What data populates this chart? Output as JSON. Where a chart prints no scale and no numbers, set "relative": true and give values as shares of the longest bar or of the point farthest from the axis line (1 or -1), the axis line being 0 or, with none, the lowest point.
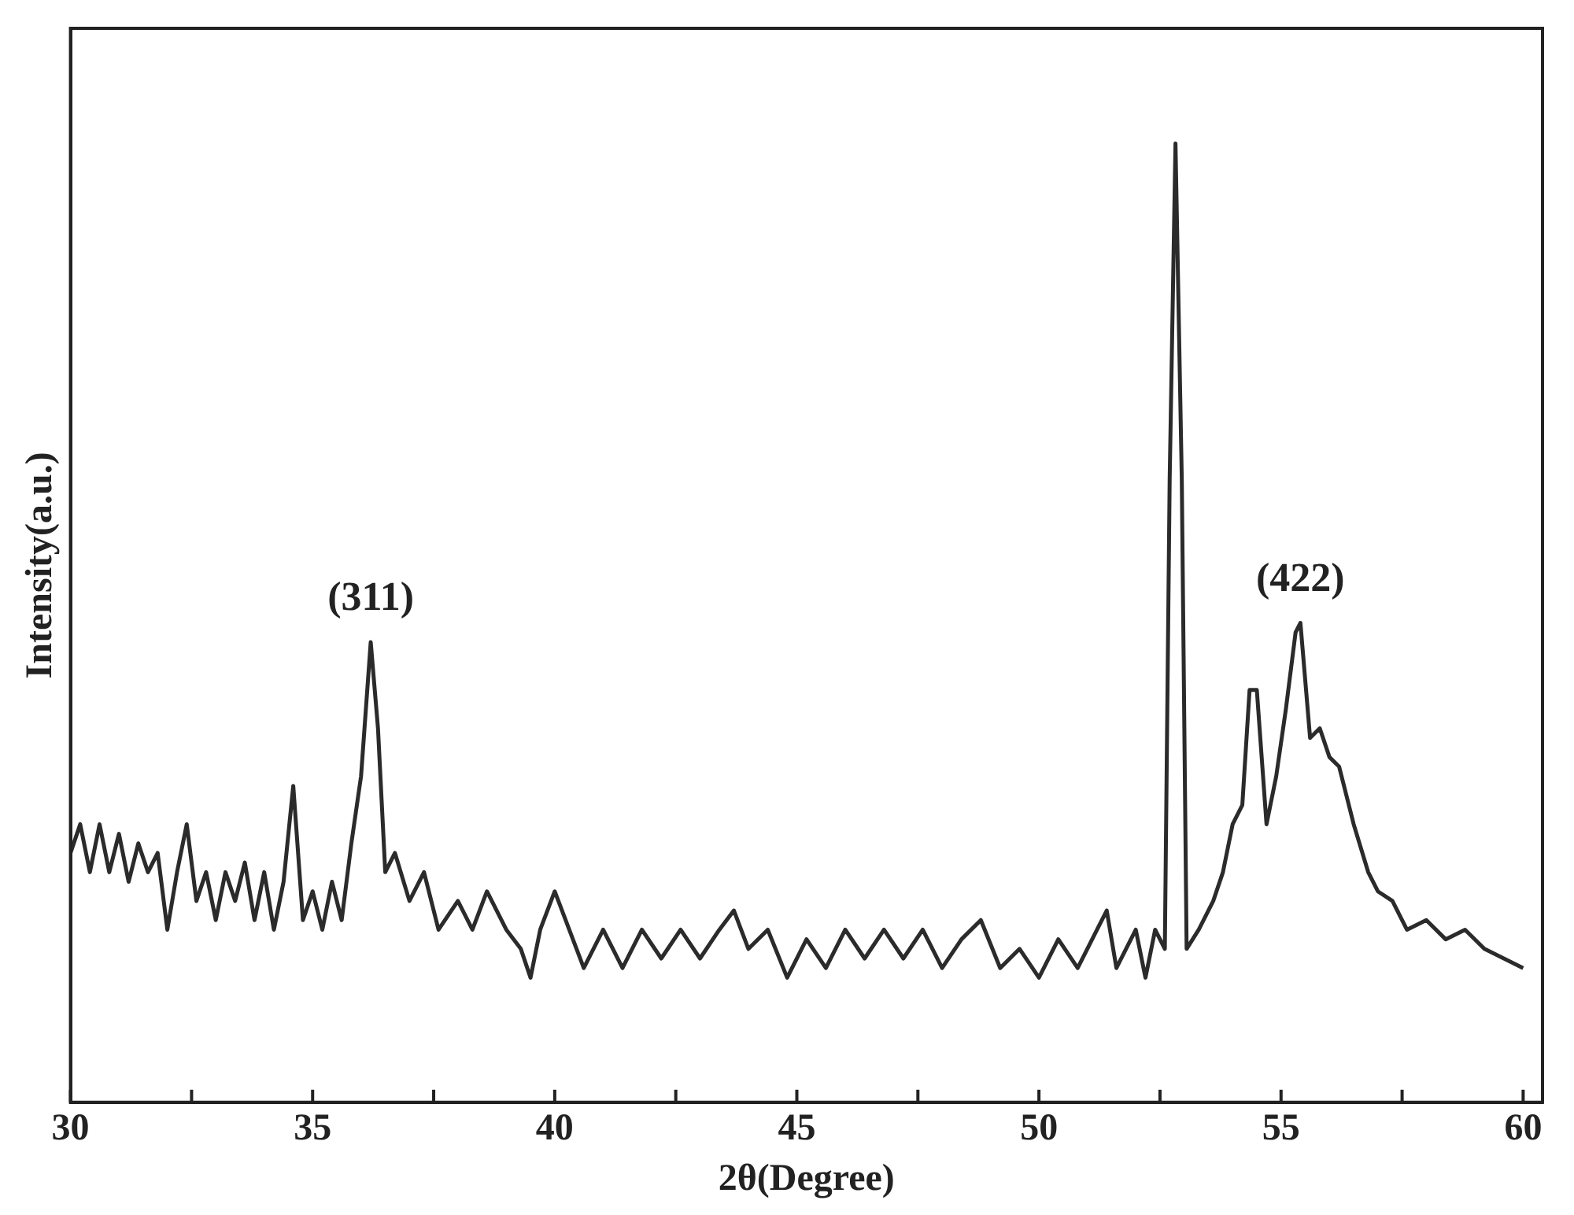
{
  "chart_data": {
    "type": "line",
    "relative": true,
    "xlabel": "2θ(Degree)",
    "ylabel": "Intensity(a.u.)",
    "xlim": [
      30,
      60.4
    ],
    "xticks": [
      30,
      {
        "value": 32.5,
        "label": null
      },
      35,
      {
        "value": 37.5,
        "label": null
      },
      40,
      {
        "value": 42.5,
        "label": null
      },
      45,
      {
        "value": 47.5,
        "label": null
      },
      50,
      {
        "value": 52.5,
        "label": null
      },
      55,
      {
        "value": 57.5,
        "label": null
      },
      60
    ],
    "marker": "none",
    "line_style": "solid",
    "grid": false,
    "legend": false,
    "annotations": [
      {
        "text": "(311)",
        "x": 36.2,
        "y": 0.48
      },
      {
        "text": "(422)",
        "x": 55.4,
        "y": 0.5
      }
    ],
    "series": [
      {
        "color": "#2b2b2b",
        "x": [
          30.0,
          30.2,
          30.4,
          30.6,
          30.8,
          31.0,
          31.2,
          31.4,
          31.6,
          31.8,
          32.0,
          32.2,
          32.4,
          32.6,
          32.8,
          33.0,
          33.2,
          33.4,
          33.6,
          33.8,
          34.0,
          34.2,
          34.4,
          34.6,
          34.8,
          35.0,
          35.2,
          35.4,
          35.6,
          35.8,
          36.0,
          36.2,
          36.35,
          36.5,
          36.7,
          37.0,
          37.3,
          37.6,
          38.0,
          38.3,
          38.6,
          39.0,
          39.3,
          39.5,
          39.7,
          40.0,
          40.3,
          40.6,
          41.0,
          41.4,
          41.8,
          42.2,
          42.6,
          43.0,
          43.4,
          43.7,
          44.0,
          44.4,
          44.8,
          45.2,
          45.6,
          46.0,
          46.4,
          46.8,
          47.2,
          47.6,
          48.0,
          48.4,
          48.8,
          49.2,
          49.6,
          50.0,
          50.4,
          50.8,
          51.2,
          51.4,
          51.6,
          52.0,
          52.2,
          52.4,
          52.6,
          52.7,
          52.82,
          52.95,
          53.05,
          53.3,
          53.6,
          53.8,
          54.0,
          54.2,
          54.35,
          54.5,
          54.7,
          54.9,
          55.1,
          55.3,
          55.4,
          55.6,
          55.8,
          56.0,
          56.2,
          56.5,
          56.8,
          57.0,
          57.3,
          57.6,
          58.0,
          58.4,
          58.8,
          59.2,
          59.6,
          60.0
        ],
        "values": [
          0.26,
          0.29,
          0.24,
          0.29,
          0.24,
          0.28,
          0.23,
          0.27,
          0.24,
          0.26,
          0.18,
          0.24,
          0.29,
          0.21,
          0.24,
          0.19,
          0.24,
          0.21,
          0.25,
          0.19,
          0.24,
          0.18,
          0.23,
          0.33,
          0.19,
          0.22,
          0.18,
          0.23,
          0.19,
          0.27,
          0.34,
          0.48,
          0.39,
          0.24,
          0.26,
          0.21,
          0.24,
          0.18,
          0.21,
          0.18,
          0.22,
          0.18,
          0.16,
          0.13,
          0.18,
          0.22,
          0.18,
          0.14,
          0.18,
          0.14,
          0.18,
          0.15,
          0.18,
          0.15,
          0.18,
          0.2,
          0.16,
          0.18,
          0.13,
          0.17,
          0.14,
          0.18,
          0.15,
          0.18,
          0.15,
          0.18,
          0.14,
          0.17,
          0.19,
          0.14,
          0.16,
          0.13,
          0.17,
          0.14,
          0.18,
          0.2,
          0.14,
          0.18,
          0.13,
          0.18,
          0.16,
          0.65,
          1,
          0.65,
          0.16,
          0.18,
          0.21,
          0.24,
          0.29,
          0.31,
          0.43,
          0.43,
          0.29,
          0.34,
          0.41,
          0.49,
          0.5,
          0.38,
          0.39,
          0.36,
          0.35,
          0.29,
          0.24,
          0.22,
          0.21,
          0.18,
          0.19,
          0.17,
          0.18,
          0.16,
          0.15,
          0.14
        ]
      }
    ]
  }
}
